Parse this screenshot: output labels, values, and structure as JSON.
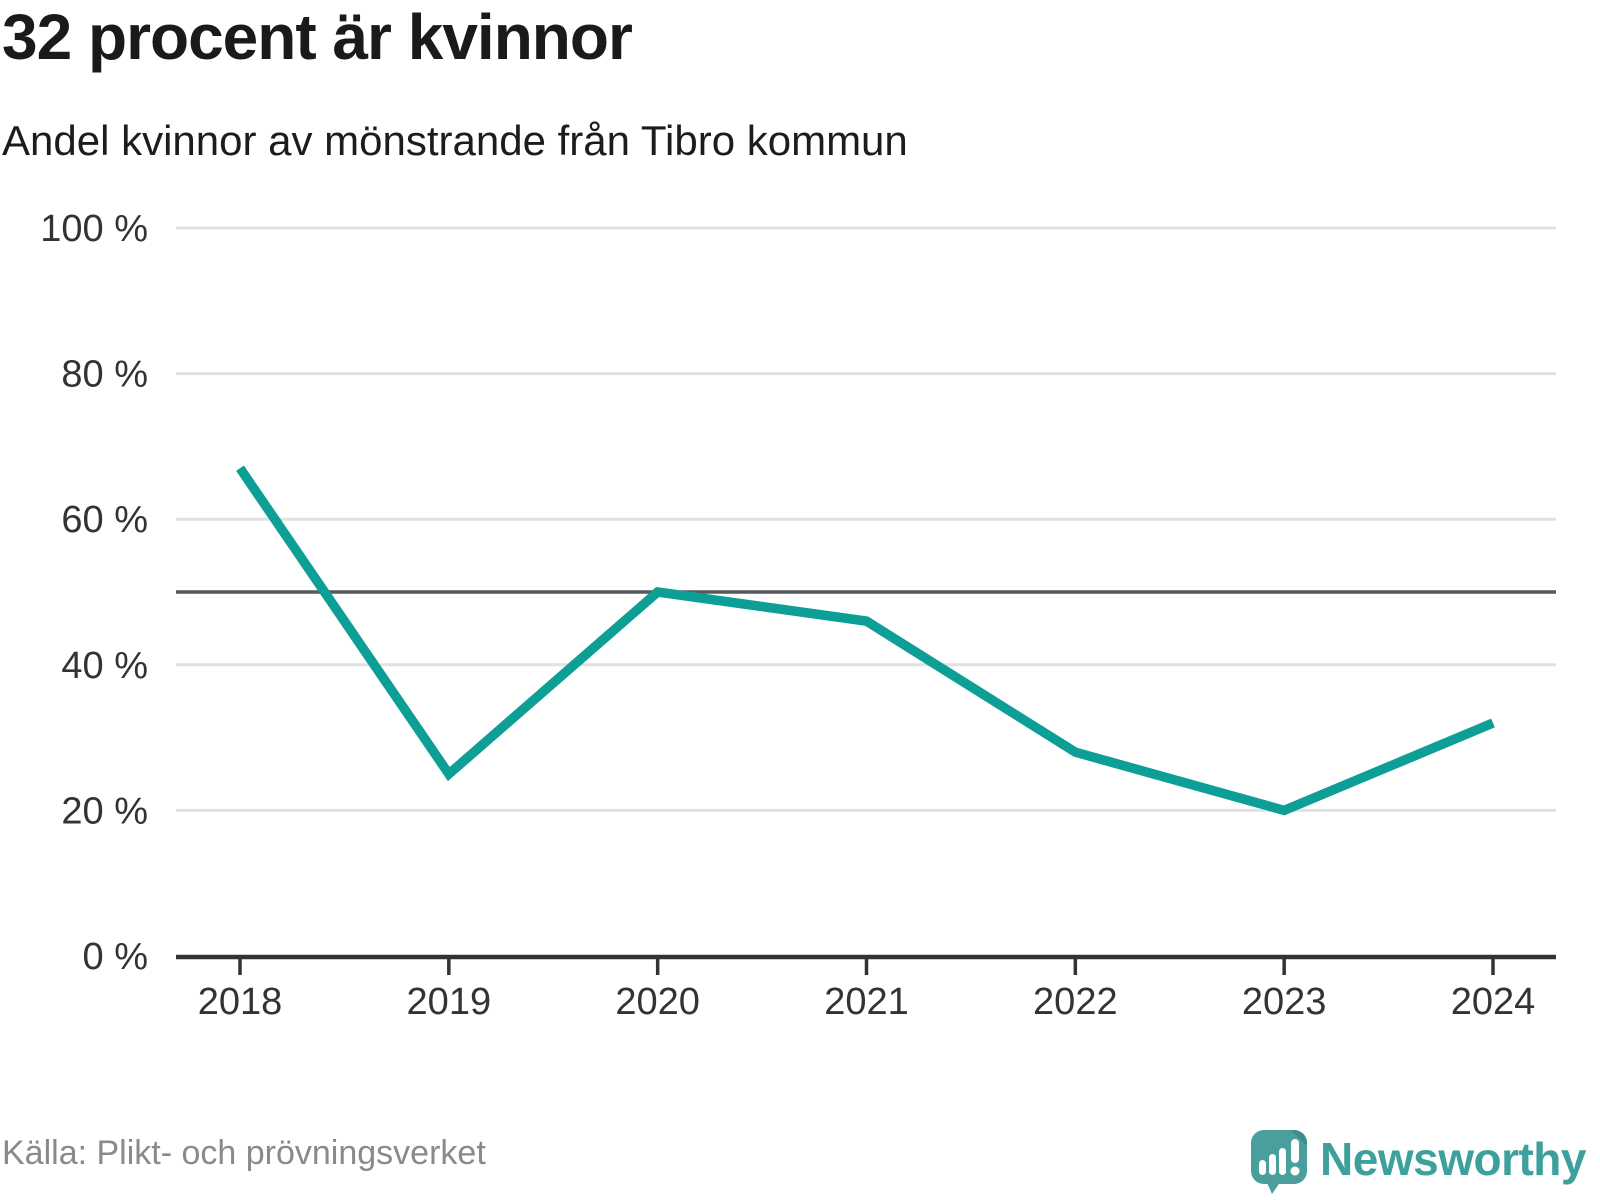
{
  "header": {
    "title": "32 procent är kvinnor",
    "subtitle": "Andel kvinnor av mönstrande från Tibro kommun"
  },
  "chart_data": {
    "type": "line",
    "title": "32 procent är kvinnor",
    "subtitle": "Andel kvinnor av mönstrande från Tibro kommun",
    "x": [
      "2018",
      "2019",
      "2020",
      "2021",
      "2022",
      "2023",
      "2024"
    ],
    "values": [
      67,
      25,
      50,
      46,
      28,
      20,
      32
    ],
    "unit": "%",
    "ylim": [
      0,
      100
    ],
    "yticks": [
      0,
      20,
      40,
      60,
      80,
      100
    ],
    "ytick_labels": [
      "0 %",
      "20 %",
      "40 %",
      "60 %",
      "80 %",
      "100 %"
    ],
    "reference_line": 50,
    "grid": true,
    "legend": "none",
    "colors": {
      "line": "#0d9e96",
      "gridline": "#e2e2e2",
      "reference_line": "#55585c",
      "axis": "#333333",
      "tick_label": "#333333"
    }
  },
  "footer": {
    "source": "Källa: Plikt- och prövningsverket",
    "logo_text": "Newsworthy",
    "logo_color": "#4a9e9c"
  }
}
